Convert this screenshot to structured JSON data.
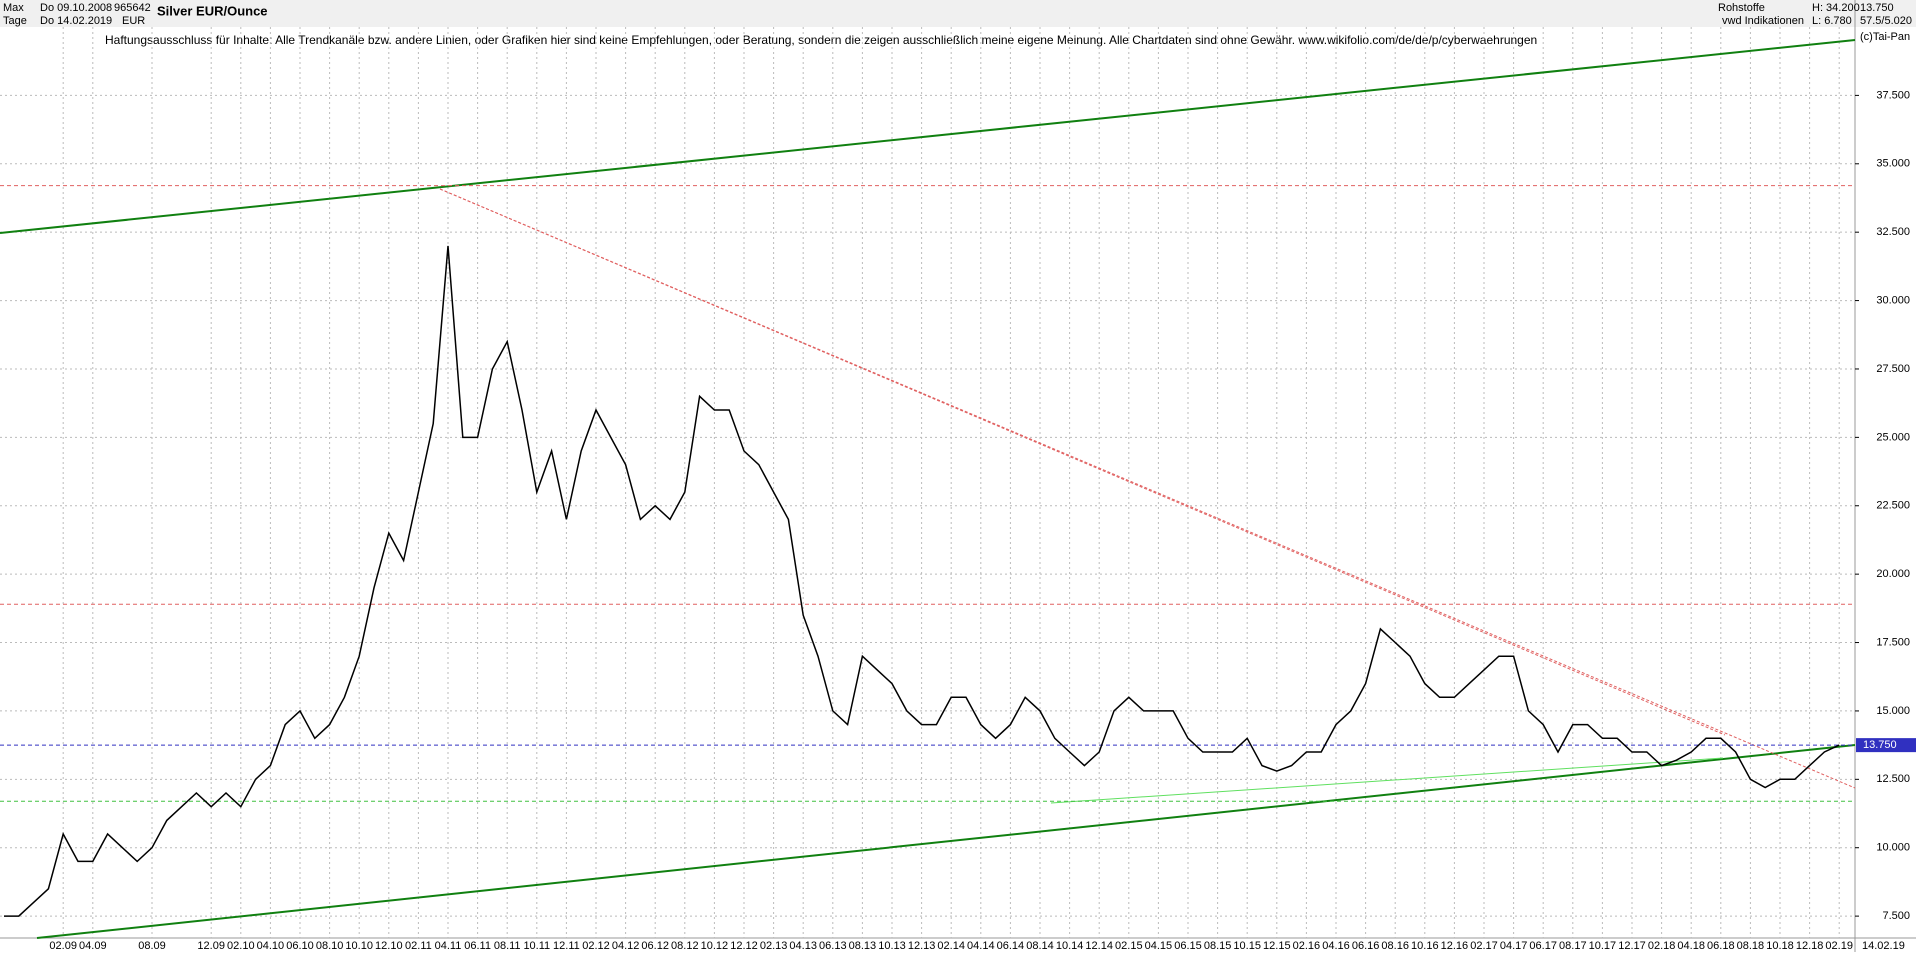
{
  "header": {
    "period": "Max",
    "start": "Do 09.10.2008",
    "unit": "Tage",
    "end": "Do 14.02.2019",
    "id": "965642",
    "currency": "EUR",
    "source": "Rohstoffe",
    "provider": "vwd Indikationen",
    "high": "H: 34.200",
    "low": "L: 6.780",
    "last": "13.750",
    "ratio": "57.5/5.020",
    "copyright": "(c)Tai-Pan",
    "end_short": "14.02.19"
  },
  "chart_data": {
    "type": "line",
    "title": "Silver EUR/Ounce",
    "annotation": "Haftungsausschluss für Inhalte: Alle Trendkanäle bzw. andere Linien, oder Grafiken hier sind keine Empfehlungen, oder Beratung, sondern die zeigen ausschließlich meine eigene Meinung. Alle Chartdaten sind ohne Gewähr.  www.wikifolio.com/de/de/p/cyberwaehrungen",
    "categories": [
      null,
      null,
      null,
      null,
      "02.09",
      null,
      "04.09",
      null,
      null,
      null,
      "08.09",
      null,
      null,
      null,
      "12.09",
      null,
      "02.10",
      null,
      "04.10",
      null,
      "06.10",
      null,
      "08.10",
      null,
      "10.10",
      null,
      "12.10",
      null,
      "02.11",
      null,
      "04.11",
      null,
      "06.11",
      null,
      "08.11",
      null,
      "10.11",
      null,
      "12.11",
      null,
      "02.12",
      null,
      "04.12",
      null,
      "06.12",
      null,
      "08.12",
      null,
      "10.12",
      null,
      "12.12",
      null,
      "02.13",
      null,
      "04.13",
      null,
      "06.13",
      null,
      "08.13",
      null,
      "10.13",
      null,
      "12.13",
      null,
      "02.14",
      null,
      "04.14",
      null,
      "06.14",
      null,
      "08.14",
      null,
      "10.14",
      null,
      "12.14",
      null,
      "02.15",
      null,
      "04.15",
      null,
      "06.15",
      null,
      "08.15",
      null,
      "10.15",
      null,
      "12.15",
      null,
      "02.16",
      null,
      "04.16",
      null,
      "06.16",
      null,
      "08.16",
      null,
      "10.16",
      null,
      "12.16",
      null,
      "02.17",
      null,
      "04.17",
      null,
      "06.17",
      null,
      "08.17",
      null,
      "10.17",
      null,
      "12.17",
      null,
      "02.18",
      null,
      "04.18",
      null,
      "06.18",
      null,
      "08.18",
      null,
      "10.18",
      null,
      "12.18",
      null,
      "02.19"
    ],
    "series": [
      {
        "color": "#000000",
        "values": [
          7.5,
          7.5,
          8.0,
          8.5,
          10.5,
          9.5,
          9.5,
          10.5,
          10.0,
          9.5,
          10.0,
          11.0,
          11.5,
          12.0,
          11.5,
          12.0,
          11.5,
          12.5,
          13.0,
          14.5,
          15.0,
          14.0,
          14.5,
          15.5,
          17.0,
          19.5,
          21.5,
          20.5,
          23.0,
          25.5,
          32.0,
          25.0,
          25.0,
          27.5,
          28.5,
          26.0,
          23.0,
          24.5,
          22.0,
          24.5,
          26.0,
          25.0,
          24.0,
          22.0,
          22.5,
          22.0,
          23.0,
          26.5,
          26.0,
          26.0,
          24.5,
          24.0,
          23.0,
          22.0,
          18.5,
          17.0,
          15.0,
          14.5,
          17.0,
          16.5,
          16.0,
          15.0,
          14.5,
          14.5,
          15.5,
          15.5,
          14.5,
          14.0,
          14.5,
          15.5,
          15.0,
          14.0,
          13.5,
          13.0,
          13.5,
          15.0,
          15.5,
          15.0,
          15.0,
          15.0,
          14.0,
          13.5,
          13.5,
          13.5,
          14.0,
          13.0,
          12.8,
          13.0,
          13.5,
          13.5,
          14.5,
          15.0,
          16.0,
          18.0,
          17.5,
          17.0,
          16.0,
          15.5,
          15.5,
          16.0,
          16.5,
          17.0,
          17.0,
          15.0,
          14.5,
          13.5,
          14.5,
          14.5,
          14.0,
          14.0,
          13.5,
          13.5,
          13.0,
          13.2,
          13.5,
          14.0,
          14.0,
          13.5,
          12.5,
          12.2,
          12.5,
          12.5,
          13.0,
          13.5,
          13.75
        ]
      }
    ],
    "ylim": [
      6.7,
      40.0
    ],
    "yticks": [
      {
        "value": 7.5,
        "label": "7.500"
      },
      {
        "value": 10,
        "label": "10.000"
      },
      {
        "value": 12.5,
        "label": "12.500"
      },
      {
        "value": 15,
        "label": "15.000"
      },
      {
        "value": 17.5,
        "label": "17.500"
      },
      {
        "value": 20,
        "label": "20.000"
      },
      {
        "value": 22.5,
        "label": "22.500"
      },
      {
        "value": 25,
        "label": "25.000"
      },
      {
        "value": 27.5,
        "label": "27.500"
      },
      {
        "value": 30,
        "label": "30.000"
      },
      {
        "value": 32.5,
        "label": "32.500"
      },
      {
        "value": 35,
        "label": "35.000"
      },
      {
        "value": 37.5,
        "label": "37.500"
      }
    ],
    "grid": true,
    "reference_lines": [
      {
        "value": 34.2,
        "color": "#e06060"
      },
      {
        "value": 18.9,
        "color": "#e06060"
      },
      {
        "value": 13.75,
        "color": "#3030c0",
        "label": "13.750"
      },
      {
        "value": 11.7,
        "color": "#40c040"
      }
    ]
  }
}
